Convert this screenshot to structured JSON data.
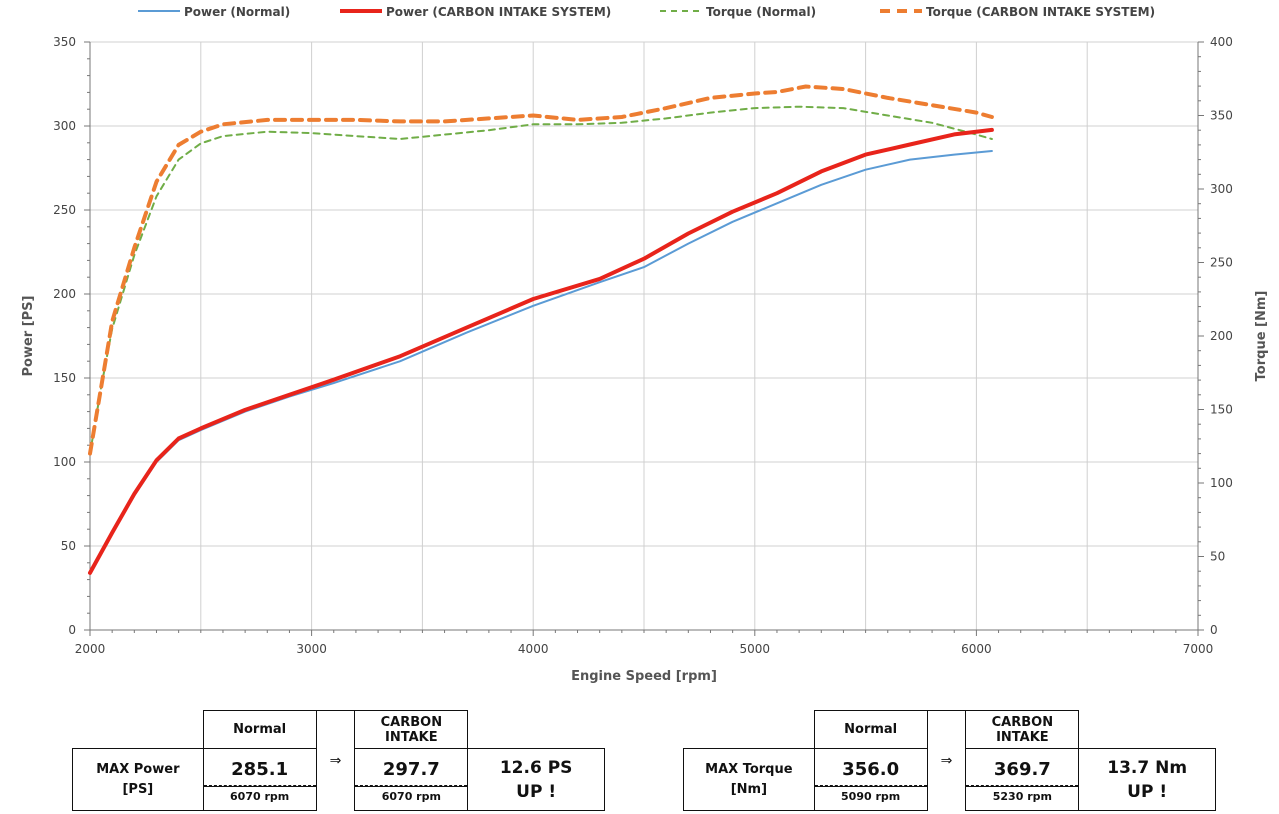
{
  "chart_data": {
    "type": "line",
    "xlabel": "Engine Speed [rpm]",
    "ylabel": "Power [PS]",
    "y2label": "Torque [Nm]",
    "xlim": [
      2000,
      7000
    ],
    "ylim": [
      0,
      350
    ],
    "y2lim": [
      0,
      400
    ],
    "x_ticks": [
      "2000",
      "3000",
      "4000",
      "5000",
      "6000",
      "7000"
    ],
    "y_ticks": [
      "0",
      "50",
      "100",
      "150",
      "200",
      "250",
      "300",
      "350"
    ],
    "y2_ticks": [
      "0",
      "50",
      "100",
      "150",
      "200",
      "250",
      "300",
      "350",
      "400"
    ],
    "grid": true,
    "legend_position": "top",
    "series": [
      {
        "name": "Power (Normal)",
        "axis": "left",
        "color": "#5b9bd5",
        "style": "solid",
        "points": [
          [
            2000,
            34
          ],
          [
            2100,
            58
          ],
          [
            2200,
            80
          ],
          [
            2300,
            100
          ],
          [
            2400,
            113
          ],
          [
            2500,
            119
          ],
          [
            2700,
            130
          ],
          [
            2900,
            139
          ],
          [
            3100,
            147
          ],
          [
            3400,
            160
          ],
          [
            3700,
            177
          ],
          [
            4000,
            193
          ],
          [
            4300,
            207
          ],
          [
            4500,
            216
          ],
          [
            4700,
            230
          ],
          [
            4900,
            243
          ],
          [
            5100,
            254
          ],
          [
            5300,
            265
          ],
          [
            5500,
            274
          ],
          [
            5700,
            280
          ],
          [
            5900,
            283
          ],
          [
            6070,
            285.1
          ]
        ]
      },
      {
        "name": "Power (CARBON INTAKE SYSTEM)",
        "axis": "left",
        "color": "#e8241b",
        "style": "solid",
        "points": [
          [
            2000,
            34
          ],
          [
            2100,
            58
          ],
          [
            2200,
            81
          ],
          [
            2300,
            101
          ],
          [
            2400,
            114
          ],
          [
            2500,
            120
          ],
          [
            2700,
            131
          ],
          [
            2900,
            140
          ],
          [
            3100,
            149
          ],
          [
            3400,
            163
          ],
          [
            3700,
            180
          ],
          [
            4000,
            197
          ],
          [
            4300,
            209
          ],
          [
            4500,
            221
          ],
          [
            4700,
            236
          ],
          [
            4900,
            249
          ],
          [
            5100,
            260
          ],
          [
            5300,
            273
          ],
          [
            5500,
            283
          ],
          [
            5700,
            289
          ],
          [
            5900,
            295
          ],
          [
            6070,
            297.7
          ]
        ]
      },
      {
        "name": "Torque (Normal)",
        "axis": "right",
        "color": "#70ad47",
        "style": "dashed",
        "points": [
          [
            2000,
            120
          ],
          [
            2050,
            165
          ],
          [
            2100,
            205
          ],
          [
            2200,
            255
          ],
          [
            2300,
            295
          ],
          [
            2400,
            320
          ],
          [
            2500,
            331
          ],
          [
            2600,
            336
          ],
          [
            2800,
            339
          ],
          [
            3000,
            338
          ],
          [
            3200,
            336
          ],
          [
            3400,
            334
          ],
          [
            3600,
            337
          ],
          [
            3800,
            340
          ],
          [
            4000,
            344
          ],
          [
            4200,
            344
          ],
          [
            4400,
            345
          ],
          [
            4600,
            348
          ],
          [
            4800,
            352
          ],
          [
            5000,
            355
          ],
          [
            5200,
            356
          ],
          [
            5400,
            355
          ],
          [
            5600,
            350
          ],
          [
            5800,
            345
          ],
          [
            6000,
            337
          ],
          [
            6070,
            334
          ]
        ]
      },
      {
        "name": "Torque (CARBON INTAKE SYSTEM)",
        "axis": "right",
        "color": "#ed7d31",
        "style": "dashed",
        "points": [
          [
            2000,
            120
          ],
          [
            2050,
            165
          ],
          [
            2100,
            210
          ],
          [
            2200,
            260
          ],
          [
            2300,
            305
          ],
          [
            2400,
            330
          ],
          [
            2500,
            339
          ],
          [
            2600,
            344
          ],
          [
            2800,
            347
          ],
          [
            3000,
            347
          ],
          [
            3200,
            347
          ],
          [
            3400,
            346
          ],
          [
            3600,
            346
          ],
          [
            3800,
            348
          ],
          [
            4000,
            350
          ],
          [
            4200,
            347
          ],
          [
            4400,
            349
          ],
          [
            4600,
            355
          ],
          [
            4800,
            362
          ],
          [
            5000,
            365
          ],
          [
            5100,
            366
          ],
          [
            5230,
            369.7
          ],
          [
            5400,
            368
          ],
          [
            5600,
            362
          ],
          [
            5800,
            357
          ],
          [
            6000,
            352
          ],
          [
            6070,
            349
          ]
        ]
      }
    ]
  },
  "tables": [
    {
      "label_line1": "MAX Power",
      "label_line2": "[PS]",
      "normal_header": "Normal",
      "carbon_header_line1": "CARBON",
      "carbon_header_line2": "INTAKE",
      "arrow": "⇒",
      "normal_value": "285.1",
      "normal_rpm": "6070 rpm",
      "carbon_value": "297.7",
      "carbon_rpm": "6070 rpm",
      "gain_line1": "12.6 PS",
      "gain_line2": "UP !"
    },
    {
      "label_line1": "MAX Torque",
      "label_line2": "[Nm]",
      "normal_header": "Normal",
      "carbon_header_line1": "CARBON",
      "carbon_header_line2": "INTAKE",
      "arrow": "⇒",
      "normal_value": "356.0",
      "normal_rpm": "5090 rpm",
      "carbon_value": "369.7",
      "carbon_rpm": "5230 rpm",
      "gain_line1": "13.7 Nm",
      "gain_line2": "UP !"
    }
  ]
}
